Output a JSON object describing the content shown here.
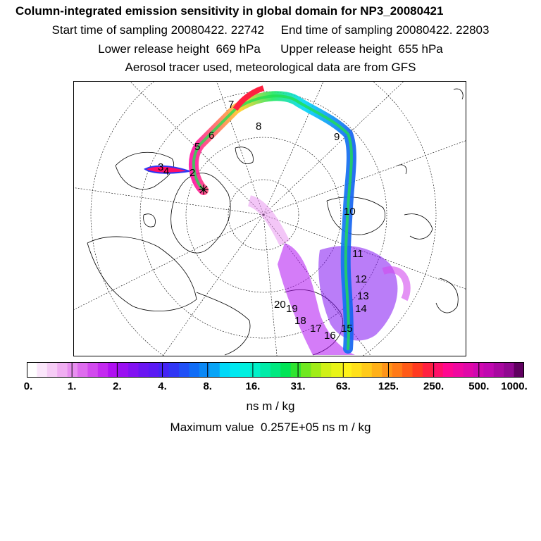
{
  "header": {
    "title": "Column-integrated emission sensitivity in global domain for NP3_20080421",
    "line1": "Start time of sampling 20080422. 22742     End time of sampling 20080422. 22803",
    "line2": "Lower release height  669 hPa      Upper release height  655 hPa",
    "line3": "Aerosol tracer used, meteorological data are from GFS"
  },
  "map": {
    "projection": "polar-stereographic",
    "track_labels": [
      "2",
      "3",
      "4",
      "5",
      "6",
      "7",
      "8",
      "9",
      "10",
      "11",
      "12",
      "13",
      "14",
      "15",
      "16",
      "17",
      "18",
      "19",
      "20"
    ],
    "release_marker": "star-icon"
  },
  "colorbar": {
    "tick_labels": [
      "0.",
      "1.",
      "2.",
      "4.",
      "8.",
      "16.",
      "31.",
      "63.",
      "125.",
      "250.",
      "500.",
      "1000."
    ],
    "colors": [
      "#ffffff",
      "#fbe6fb",
      "#f6ccf6",
      "#f0aef2",
      "#e88ef0",
      "#de6cee",
      "#d24aee",
      "#c42af0",
      "#b010f2",
      "#9a10f2",
      "#8212f2",
      "#6a16f2",
      "#5a1af4",
      "#4424f4",
      "#3036f4",
      "#2050f6",
      "#106cf6",
      "#0a88f6",
      "#08a4f6",
      "#00d8f8",
      "#00e8f0",
      "#00f0e0",
      "#00f0c8",
      "#00eca8",
      "#00e880",
      "#00e456",
      "#30e430",
      "#70e820",
      "#a0ec18",
      "#d0f018",
      "#e8f418",
      "#fff21a",
      "#ffe01a",
      "#ffca1a",
      "#ffb018",
      "#ff9418",
      "#ff7a18",
      "#ff5a18",
      "#ff3a20",
      "#ff2040",
      "#ff1068",
      "#ff0890",
      "#f008a0",
      "#e008a8",
      "#d008b0",
      "#c008b0",
      "#a808a0",
      "#900890",
      "#600060"
    ]
  },
  "units": "ns m / kg",
  "maximum": "Maximum value  0.257E+05 ns m / kg"
}
